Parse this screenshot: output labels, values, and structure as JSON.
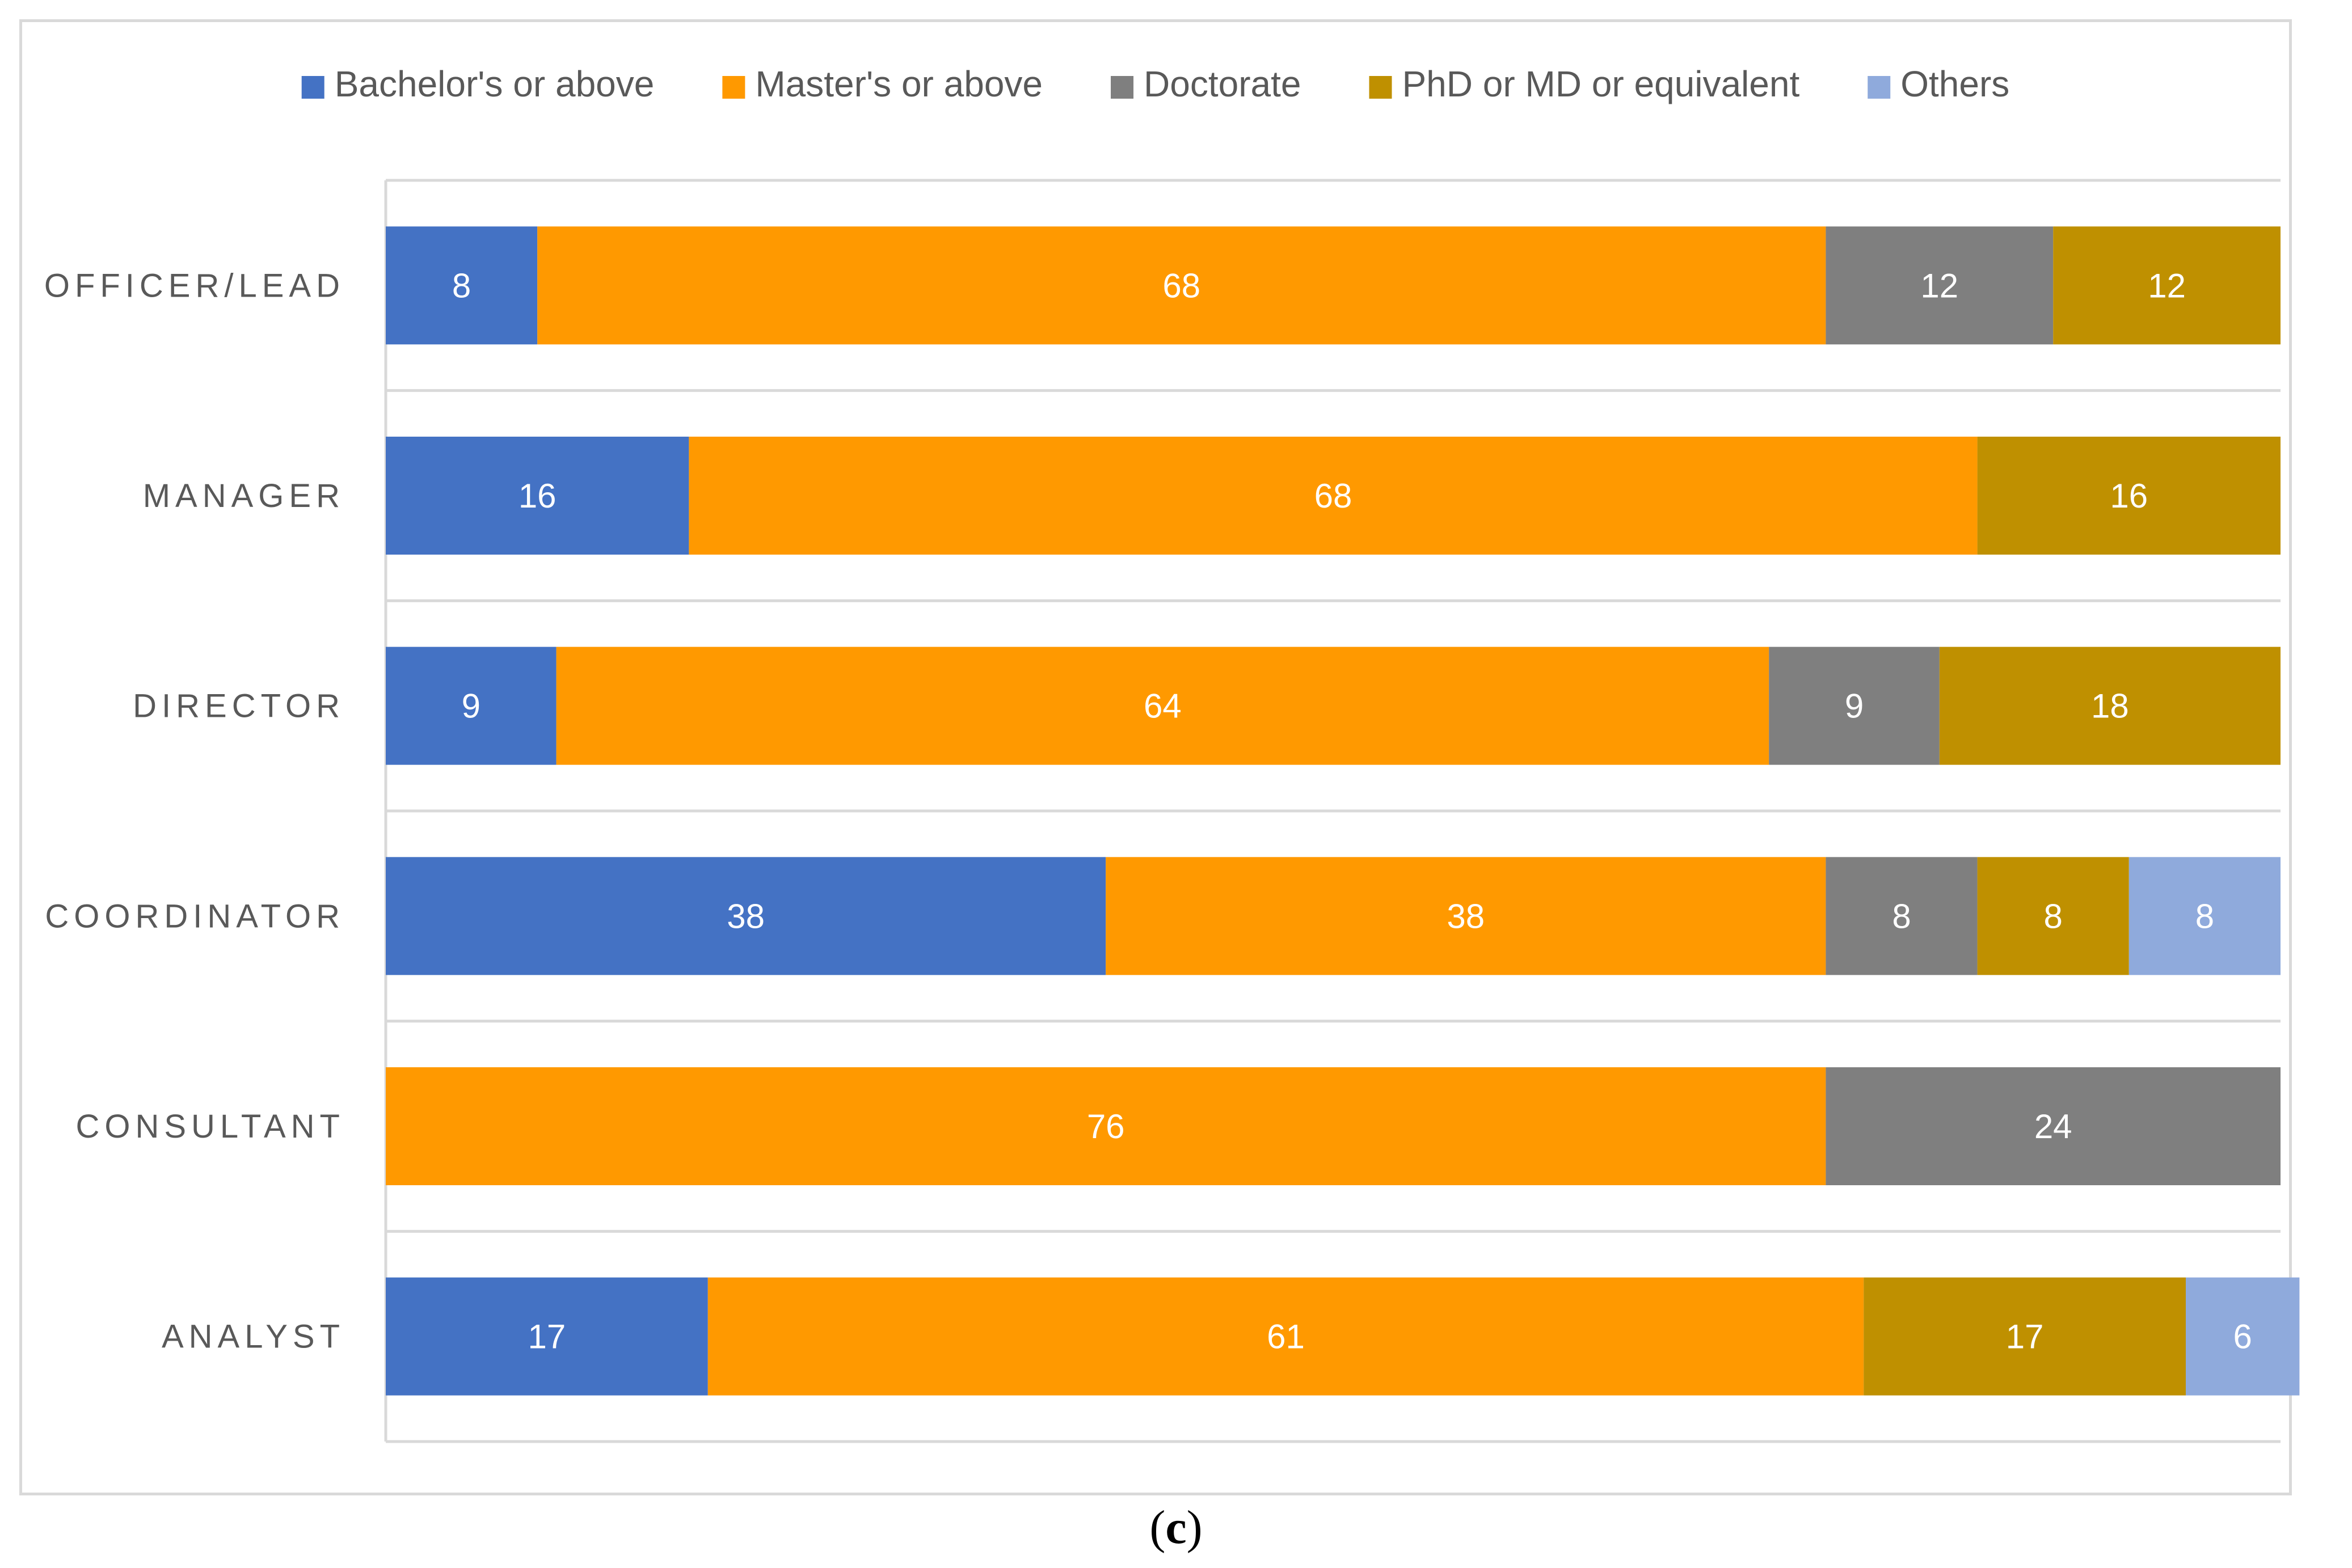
{
  "chart_data": {
    "type": "bar",
    "orientation": "horizontal",
    "stacked": true,
    "categories": [
      "OFFICER/LEAD",
      "MANAGER",
      "DIRECTOR",
      "COORDINATOR",
      "CONSULTANT",
      "ANALYST"
    ],
    "series": [
      {
        "name": "Bachelor's or above",
        "color": "#4472c4",
        "values": [
          8,
          16,
          9,
          38,
          0,
          17
        ]
      },
      {
        "name": "Master's or above",
        "color": "#ff9900",
        "values": [
          68,
          68,
          64,
          38,
          76,
          61
        ]
      },
      {
        "name": "Doctorate",
        "color": "#7f7f7f",
        "values": [
          12,
          0,
          9,
          8,
          24,
          0
        ]
      },
      {
        "name": "PhD or MD or equivalent",
        "color": "#bf9000",
        "values": [
          12,
          16,
          18,
          8,
          0,
          17
        ]
      },
      {
        "name": "Others",
        "color": "#8faadc",
        "values": [
          0,
          0,
          0,
          8,
          0,
          6
        ]
      }
    ],
    "legend_position": "top",
    "xlim": [
      0,
      100
    ],
    "title": "",
    "xlabel": "",
    "ylabel": ""
  },
  "caption": {
    "open": "(",
    "letter": "c",
    "close": ")"
  }
}
